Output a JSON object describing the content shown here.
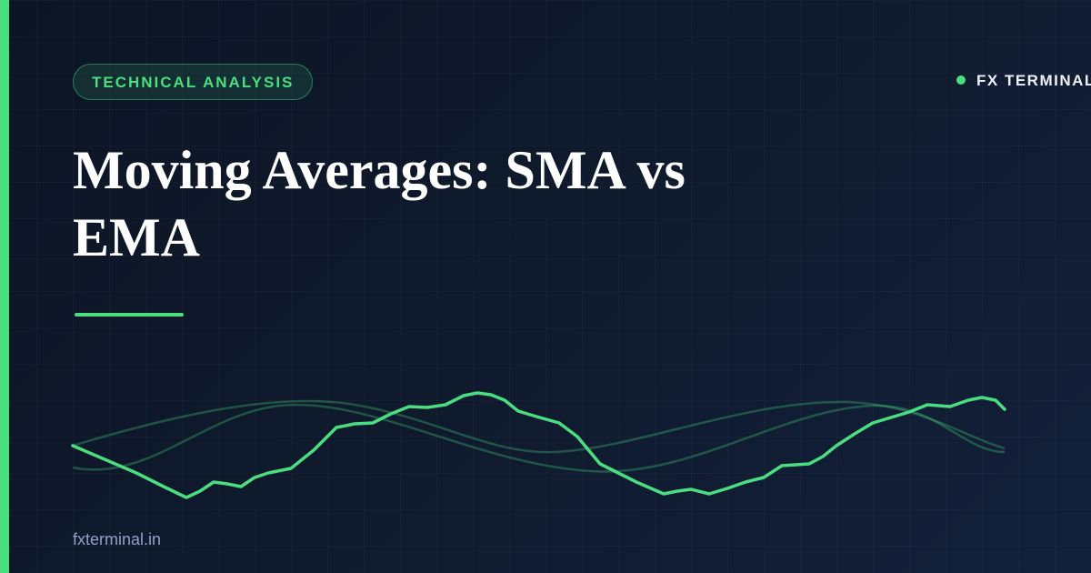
{
  "badge": "TECHNICAL ANALYSIS",
  "brand": "FX TERMINAL",
  "title": "Moving Averages: SMA vs EMA",
  "footer": "fxterminal.in"
}
